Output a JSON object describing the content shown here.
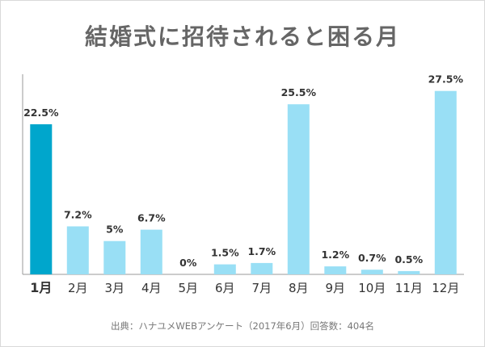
{
  "title": "結婚式に招待されると困る月",
  "source": "出典：ハナユメWEBアンケート（2017年6月）回答数：404名",
  "colors": {
    "highlight": "#00a6cc",
    "bar": "#99dff5",
    "axis": "#999999"
  },
  "chart_data": {
    "type": "bar",
    "title": "結婚式に招待されると困る月",
    "categories": [
      "1月",
      "2月",
      "3月",
      "4月",
      "5月",
      "6月",
      "7月",
      "8月",
      "9月",
      "10月",
      "11月",
      "12月"
    ],
    "values": [
      22.5,
      7.2,
      5,
      6.7,
      0,
      1.5,
      1.7,
      25.5,
      1.2,
      0.7,
      0.5,
      27.5
    ],
    "value_labels": [
      "22.5%",
      "7.2%",
      "5%",
      "6.7%",
      "0%",
      "1.5%",
      "1.7%",
      "25.5%",
      "1.2%",
      "0.7%",
      "0.5%",
      "27.5%"
    ],
    "highlight_index": 0,
    "ylim": [
      0,
      30
    ],
    "xlabel": "",
    "ylabel": "",
    "grid": false,
    "legend": "none"
  }
}
